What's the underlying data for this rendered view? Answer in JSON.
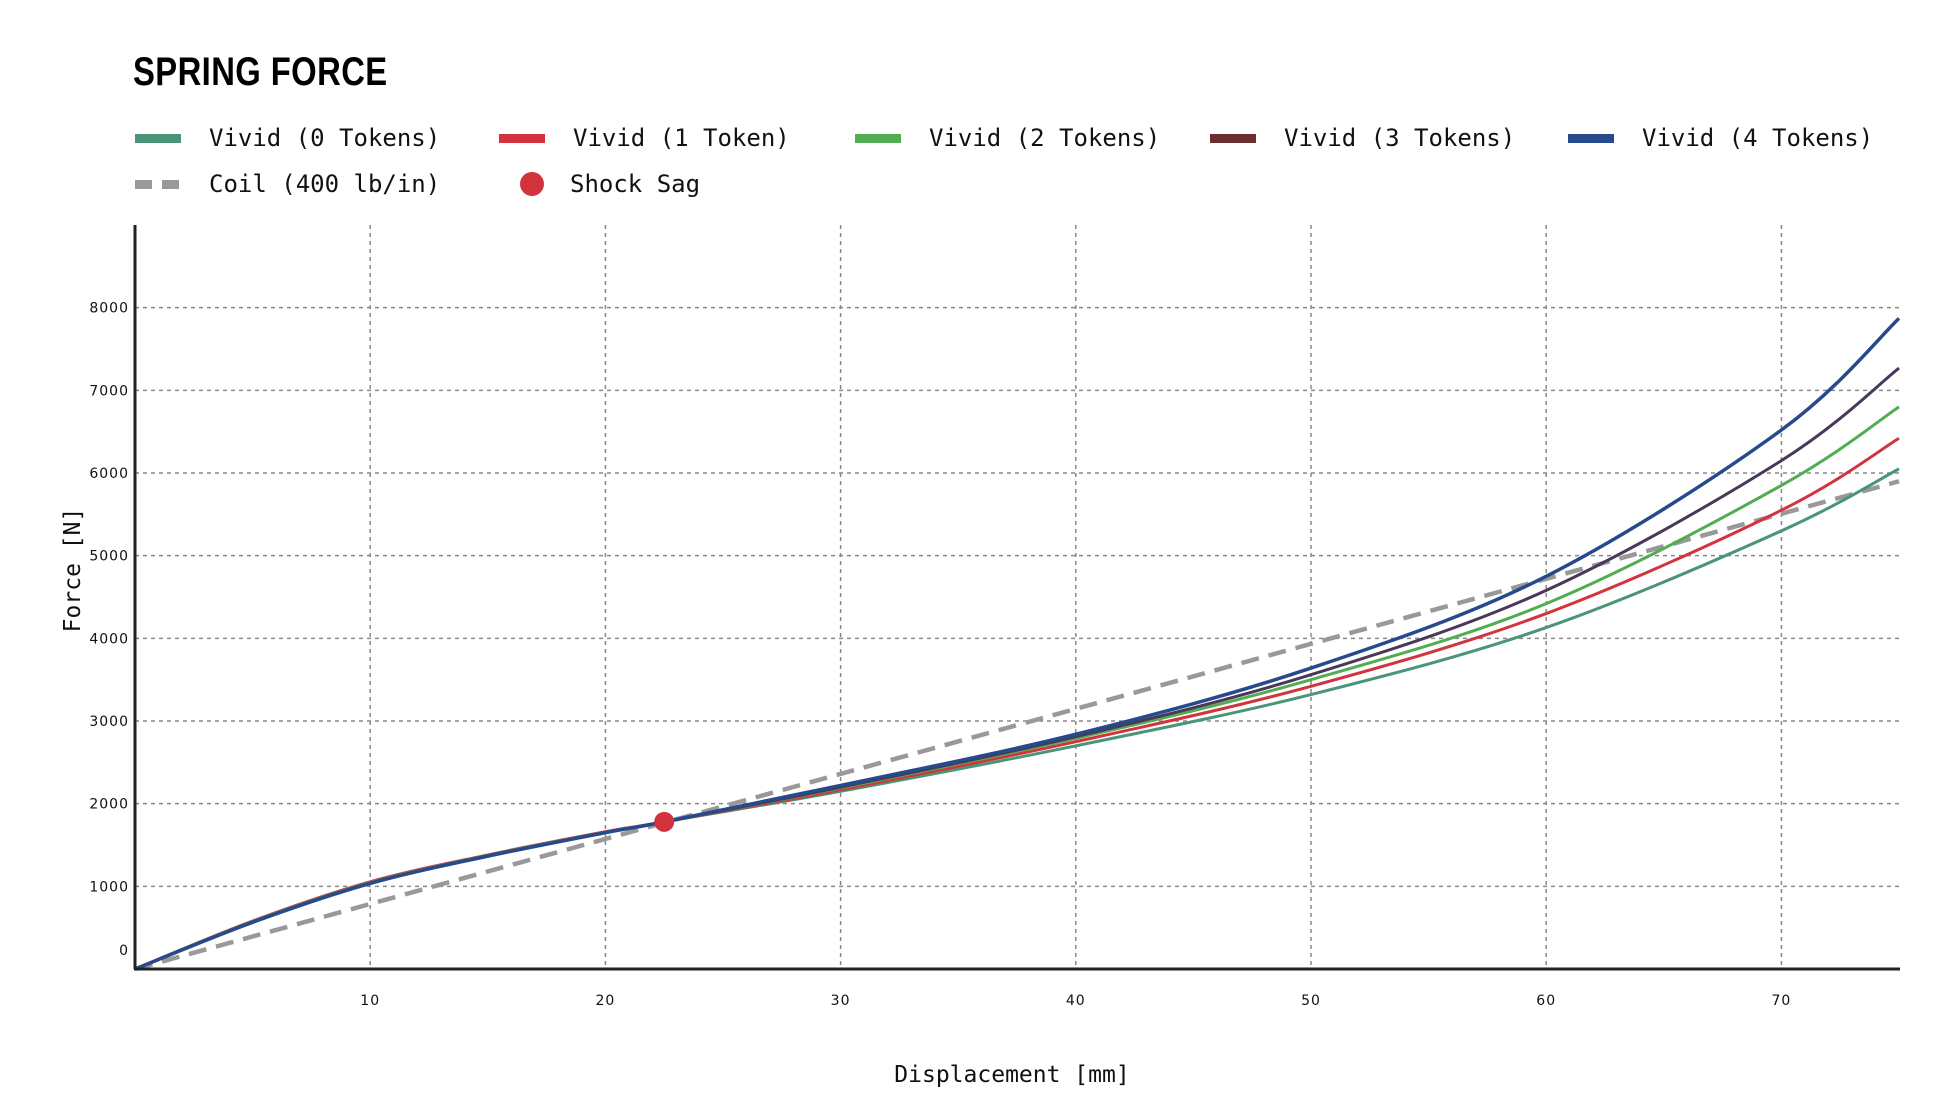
{
  "chart_data": {
    "type": "line",
    "title": "SPRING FORCE",
    "xlabel": "Displacement [mm]",
    "ylabel": "Force [N]",
    "xlim": [
      0,
      75
    ],
    "ylim": [
      0,
      9000
    ],
    "xticks": [
      10,
      20,
      30,
      40,
      50,
      60,
      70
    ],
    "yticks": [
      0,
      1000,
      2000,
      3000,
      4000,
      5000,
      6000,
      7000,
      8000
    ],
    "grid": true,
    "legend_placement": "top",
    "x": [
      0,
      5,
      10,
      15,
      20,
      22.5,
      30,
      40,
      50,
      60,
      70,
      75
    ],
    "series": [
      {
        "name": "Vivid (0 Tokens)",
        "color": "#4a9478",
        "values": [
          0,
          570,
          1040,
          1370,
          1650,
          1780,
          2150,
          2700,
          3320,
          4130,
          5300,
          6050
        ]
      },
      {
        "name": "Vivid (1 Token)",
        "color": "#d2333c",
        "values": [
          0,
          580,
          1055,
          1380,
          1660,
          1780,
          2170,
          2750,
          3420,
          4300,
          5550,
          6420
        ]
      },
      {
        "name": "Vivid (2 Tokens)",
        "color": "#52ad52",
        "values": [
          0,
          575,
          1045,
          1375,
          1655,
          1780,
          2190,
          2790,
          3500,
          4420,
          5850,
          6800
        ]
      },
      {
        "name": "Vivid (3 Tokens)",
        "color": "#4a3858",
        "legend_color": "#6b2e2e",
        "values": [
          0,
          570,
          1040,
          1370,
          1652,
          1780,
          2200,
          2810,
          3560,
          4580,
          6150,
          7270
        ]
      },
      {
        "name": "Vivid (4 Tokens)",
        "color": "#264a8c",
        "values": [
          0,
          565,
          1035,
          1365,
          1650,
          1780,
          2220,
          2840,
          3640,
          4750,
          6520,
          7870
        ]
      }
    ],
    "reference": {
      "name": "Coil (400 lb/in)",
      "color": "#999999",
      "x": [
        0,
        75
      ],
      "values": [
        0,
        5900
      ]
    },
    "marker": {
      "name": "Shock Sag",
      "color": "#d2333c",
      "x": 22.5,
      "y": 1780
    }
  }
}
